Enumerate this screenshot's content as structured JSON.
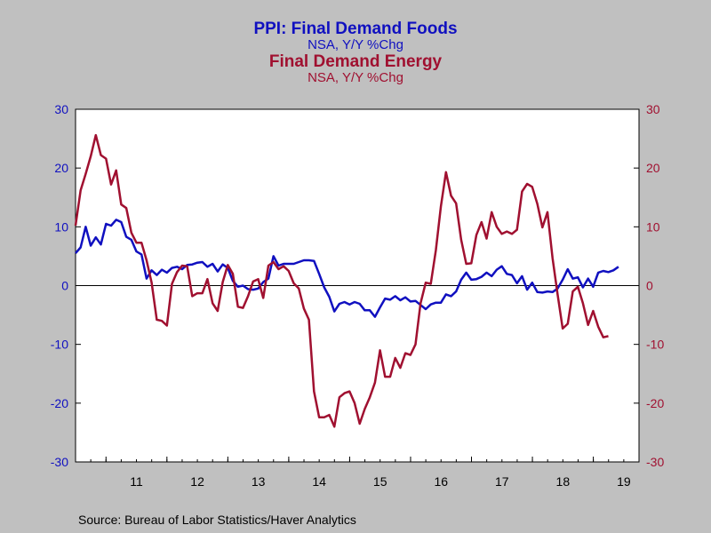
{
  "chart_data": {
    "type": "line",
    "titles": [
      {
        "text": "PPI: Final Demand Foods",
        "color": "#1010c0"
      },
      {
        "text": "NSA, Y/Y %Chg",
        "color": "#1010c0"
      },
      {
        "text": "Final Demand Energy",
        "color": "#a01030"
      },
      {
        "text": "NSA, Y/Y %Chg",
        "color": "#a01030"
      }
    ],
    "x_ticks": [
      "11",
      "12",
      "13",
      "14",
      "15",
      "16",
      "17",
      "18",
      "19"
    ],
    "x_range": [
      2010.5,
      2019.75
    ],
    "y_ticks": [
      "30",
      "20",
      "10",
      "0",
      "-10",
      "-20",
      "-30"
    ],
    "ylim": [
      -30,
      30
    ],
    "y_left_color": "#1010c0",
    "y_right_color": "#a01030",
    "zero_line": true,
    "series": [
      {
        "name": "PPI: Final Demand Foods",
        "axis": "left",
        "color": "#1010c0",
        "x_start": 2010.5,
        "x_step": 0.0833,
        "values": [
          5.5,
          6.5,
          10.0,
          6.8,
          8.2,
          7.0,
          10.5,
          10.2,
          11.2,
          10.8,
          8.3,
          7.8,
          5.8,
          5.3,
          1.2,
          2.6,
          1.8,
          2.7,
          2.2,
          3.0,
          3.2,
          2.8,
          3.5,
          3.6,
          3.9,
          4.0,
          3.2,
          3.7,
          2.4,
          3.6,
          3.0,
          0.8,
          -0.2,
          0.0,
          -0.6,
          -0.7,
          -0.5,
          0.6,
          1.2,
          5.0,
          3.4,
          3.7,
          3.7,
          3.7,
          4.0,
          4.3,
          4.3,
          4.2,
          2.0,
          -0.3,
          -1.9,
          -4.4,
          -3.1,
          -2.8,
          -3.2,
          -2.8,
          -3.1,
          -4.2,
          -4.2,
          -5.3,
          -3.7,
          -2.2,
          -2.4,
          -1.8,
          -2.5,
          -2.0,
          -2.7,
          -2.6,
          -3.3,
          -4.0,
          -3.2,
          -2.9,
          -2.9,
          -1.5,
          -1.8,
          -1.0,
          1.0,
          2.2,
          1.0,
          1.1,
          1.5,
          2.2,
          1.6,
          2.7,
          3.3,
          2.0,
          1.8,
          0.4,
          1.6,
          -0.7,
          0.5,
          -1.1,
          -1.2,
          -1.0,
          -1.1,
          -0.5,
          1.0,
          2.8,
          1.2,
          1.4,
          -0.3,
          1.2,
          -0.2,
          2.2,
          2.5,
          2.3,
          2.6,
          3.2
        ]
      },
      {
        "name": "Final Demand Energy",
        "axis": "right",
        "color": "#a01030",
        "x_start": 2010.5,
        "x_step": 0.0833,
        "values": [
          10.2,
          16.2,
          19.0,
          22.0,
          25.6,
          22.2,
          21.6,
          17.2,
          19.6,
          13.8,
          13.2,
          9.0,
          7.3,
          7.3,
          4.3,
          0.5,
          -5.8,
          -6.0,
          -6.8,
          0.3,
          2.3,
          3.4,
          3.3,
          -1.8,
          -1.3,
          -1.3,
          1.1,
          -3.0,
          -4.3,
          0.6,
          3.5,
          2.0,
          -3.6,
          -3.8,
          -1.8,
          0.7,
          1.1,
          -2.1,
          3.4,
          4.0,
          2.8,
          3.3,
          2.5,
          0.4,
          -0.5,
          -3.9,
          -5.8,
          -18.0,
          -22.4,
          -22.4,
          -22.0,
          -24.0,
          -19.0,
          -18.3,
          -18.0,
          -20.0,
          -23.5,
          -21.0,
          -19.0,
          -16.5,
          -11.0,
          -15.5,
          -15.5,
          -12.3,
          -14.0,
          -11.5,
          -11.8,
          -10.0,
          -3.0,
          0.5,
          0.3,
          6.0,
          13.5,
          19.3,
          15.3,
          14.0,
          7.8,
          3.7,
          3.8,
          8.6,
          10.8,
          8.0,
          12.5,
          10.0,
          8.8,
          9.2,
          8.8,
          9.5,
          16.0,
          17.3,
          16.8,
          13.9,
          9.9,
          12.5,
          4.7,
          -1.5,
          -7.3,
          -6.5,
          -1.0,
          -0.2,
          -3.0,
          -6.7,
          -4.3,
          -7.0,
          -8.8,
          -8.6
        ]
      }
    ]
  },
  "source": "Source:  Bureau of Labor Statistics/Haver Analytics"
}
